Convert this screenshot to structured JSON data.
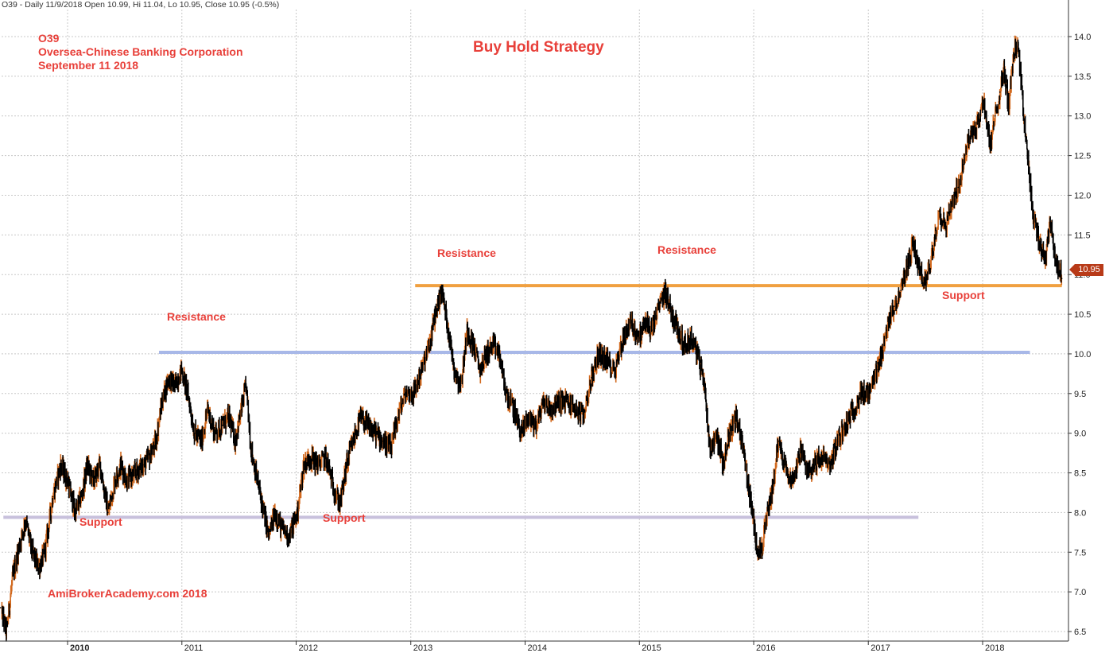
{
  "header": {
    "text": "O39 - Daily 11/9/2018 Open 10.99, Hi 11.04, Lo 10.95, Close 10.95 (-0.5%)"
  },
  "annotations": {
    "symbol": "O39",
    "company": "Oversea-Chinese Banking Corporation",
    "date": "September 11 2018",
    "title": "Buy Hold Strategy",
    "watermark": "AmiBrokerAcademy.com  2018",
    "resistance_1": "Resistance",
    "resistance_2": "Resistance",
    "resistance_3": "Resistance",
    "support_1": "Support",
    "support_2": "Support",
    "support_3": "Support"
  },
  "price_tag": "10.95",
  "colors": {
    "annotation": "#e8403a",
    "bar_up": "#d2691e",
    "bar_down": "#000000",
    "line_orange": "#f0a040",
    "line_blue": "#a8b8e8",
    "line_lavender": "#c8c0dc",
    "grid": "#c8c8c8",
    "price_tag_bg": "#b83a18"
  },
  "chart_data": {
    "type": "line",
    "chart_style": "ohlc-bars",
    "x_axis": {
      "type": "date",
      "range": [
        "2009-06-01",
        "2018-09-11"
      ],
      "tick_labels": [
        "2010",
        "2011",
        "2012",
        "2013",
        "2014",
        "2015",
        "2016",
        "2017",
        "2018"
      ],
      "tick_dates": [
        "2010-01-01",
        "2011-01-01",
        "2012-01-01",
        "2013-01-01",
        "2014-01-01",
        "2015-01-01",
        "2016-01-01",
        "2017-01-01",
        "2018-01-01"
      ]
    },
    "y_axis": {
      "range": [
        6.2,
        14.2
      ],
      "position": "right",
      "ticks": [
        "6.5",
        "7.0",
        "7.5",
        "8.0",
        "8.5",
        "9.0",
        "9.5",
        "10.0",
        "10.5",
        "11.0",
        "11.5",
        "12.0",
        "12.5",
        "13.0",
        "13.5",
        "14.0"
      ]
    },
    "grid": true,
    "series": [
      {
        "values_are": "approximate close prices",
        "x": [
          "2009-06-01",
          "2009-06-20",
          "2009-07-10",
          "2009-08-01",
          "2009-08-20",
          "2009-09-10",
          "2009-10-01",
          "2009-10-20",
          "2009-11-15",
          "2009-12-10",
          "2010-01-01",
          "2010-01-25",
          "2010-02-15",
          "2010-03-05",
          "2010-03-25",
          "2010-04-15",
          "2010-05-10",
          "2010-06-01",
          "2010-06-20",
          "2010-07-10",
          "2010-08-05",
          "2010-08-30",
          "2010-09-20",
          "2010-10-10",
          "2010-10-30",
          "2010-11-20",
          "2010-12-10",
          "2010-12-31",
          "2011-01-20",
          "2011-02-10",
          "2011-03-05",
          "2011-03-25",
          "2011-04-15",
          "2011-05-10",
          "2011-06-01",
          "2011-06-20",
          "2011-07-10",
          "2011-07-25",
          "2011-08-10",
          "2011-08-30",
          "2011-09-20",
          "2011-10-05",
          "2011-10-25",
          "2011-11-15",
          "2011-12-10",
          "2012-01-05",
          "2012-01-25",
          "2012-02-15",
          "2012-03-10",
          "2012-04-05",
          "2012-04-30",
          "2012-05-20",
          "2012-06-10",
          "2012-07-01",
          "2012-07-25",
          "2012-08-15",
          "2012-09-10",
          "2012-10-05",
          "2012-10-30",
          "2012-11-20",
          "2012-12-15",
          "2013-01-10",
          "2013-02-05",
          "2013-03-01",
          "2013-03-20",
          "2013-04-10",
          "2013-05-01",
          "2013-05-20",
          "2013-06-10",
          "2013-06-30",
          "2013-07-20",
          "2013-08-10",
          "2013-08-30",
          "2013-09-20",
          "2013-10-10",
          "2013-11-01",
          "2013-11-25",
          "2013-12-20",
          "2014-01-10",
          "2014-02-05",
          "2014-03-01",
          "2014-03-25",
          "2014-04-20",
          "2014-05-15",
          "2014-06-10",
          "2014-07-05",
          "2014-08-01",
          "2014-08-25",
          "2014-09-20",
          "2014-10-15",
          "2014-11-10",
          "2014-12-05",
          "2014-12-31",
          "2015-01-20",
          "2015-02-10",
          "2015-03-05",
          "2015-03-25",
          "2015-04-15",
          "2015-05-05",
          "2015-05-25",
          "2015-06-15",
          "2015-07-05",
          "2015-07-25",
          "2015-08-15",
          "2015-09-05",
          "2015-09-25",
          "2015-10-15",
          "2015-11-05",
          "2015-11-25",
          "2015-12-20",
          "2016-01-10",
          "2016-01-25",
          "2016-02-10",
          "2016-03-01",
          "2016-03-20",
          "2016-04-10",
          "2016-05-05",
          "2016-05-30",
          "2016-06-20",
          "2016-07-10",
          "2016-08-05",
          "2016-09-01",
          "2016-09-25",
          "2016-10-20",
          "2016-11-15",
          "2016-12-10",
          "2017-01-05",
          "2017-02-01",
          "2017-03-01",
          "2017-03-25",
          "2017-04-15",
          "2017-05-05",
          "2017-05-25",
          "2017-06-15",
          "2017-07-05",
          "2017-07-25",
          "2017-08-15",
          "2017-09-05",
          "2017-09-25",
          "2017-10-15",
          "2017-11-05",
          "2017-11-25",
          "2017-12-15",
          "2018-01-05",
          "2018-01-25",
          "2018-02-10",
          "2018-02-25",
          "2018-03-10",
          "2018-03-25",
          "2018-04-10",
          "2018-04-25",
          "2018-05-10",
          "2018-05-25",
          "2018-06-10",
          "2018-06-30",
          "2018-07-20",
          "2018-08-05",
          "2018-08-20",
          "2018-09-11"
        ],
        "values": [
          6.8,
          6.5,
          7.2,
          7.6,
          7.9,
          7.5,
          7.3,
          7.5,
          8.2,
          8.6,
          8.4,
          8.0,
          8.2,
          8.6,
          8.4,
          8.6,
          8.0,
          8.4,
          8.6,
          8.4,
          8.5,
          8.6,
          8.7,
          8.9,
          9.4,
          9.7,
          9.6,
          9.8,
          9.5,
          9.0,
          8.9,
          9.3,
          9.0,
          9.1,
          9.2,
          8.9,
          9.3,
          9.6,
          8.8,
          8.4,
          8.0,
          7.7,
          8.0,
          7.8,
          7.7,
          8.0,
          8.6,
          8.7,
          8.6,
          8.7,
          8.3,
          8.1,
          8.6,
          8.9,
          9.2,
          9.1,
          9.0,
          8.9,
          8.8,
          9.2,
          9.5,
          9.5,
          9.8,
          10.1,
          10.5,
          10.8,
          10.3,
          9.8,
          9.6,
          10.3,
          10.1,
          9.8,
          10.0,
          10.1,
          10.0,
          9.5,
          9.3,
          9.0,
          9.2,
          9.1,
          9.4,
          9.3,
          9.4,
          9.4,
          9.3,
          9.2,
          9.7,
          10.0,
          9.9,
          9.8,
          10.2,
          10.4,
          10.2,
          10.4,
          10.3,
          10.6,
          10.8,
          10.5,
          10.3,
          10.1,
          10.2,
          10.0,
          9.7,
          8.8,
          9.0,
          8.6,
          9.0,
          9.2,
          8.9,
          8.2,
          7.6,
          7.5,
          7.9,
          8.3,
          8.9,
          8.6,
          8.4,
          8.8,
          8.5,
          8.6,
          8.7,
          8.6,
          8.9,
          9.1,
          9.3,
          9.5,
          9.5,
          9.8,
          10.3,
          10.6,
          10.8,
          11.1,
          11.4,
          11.0,
          10.9,
          11.3,
          11.8,
          11.6,
          11.9,
          12.1,
          12.5,
          12.8,
          12.9,
          13.2,
          12.6,
          13.0,
          13.3,
          13.6,
          13.1,
          13.8,
          13.9,
          13.1,
          12.5,
          11.8,
          11.4,
          11.2,
          11.7,
          11.2,
          10.95
        ]
      }
    ],
    "reference_lines": [
      {
        "value": 10.86,
        "from": "2013-01-15",
        "to": "2018-09-11",
        "color": "#f0a040"
      },
      {
        "value": 10.02,
        "from": "2010-10-20",
        "to": "2018-06-01",
        "color": "#a8b8e8"
      },
      {
        "value": 7.94,
        "from": "2009-06-10",
        "to": "2017-06-10",
        "color": "#c8c0dc"
      }
    ]
  }
}
